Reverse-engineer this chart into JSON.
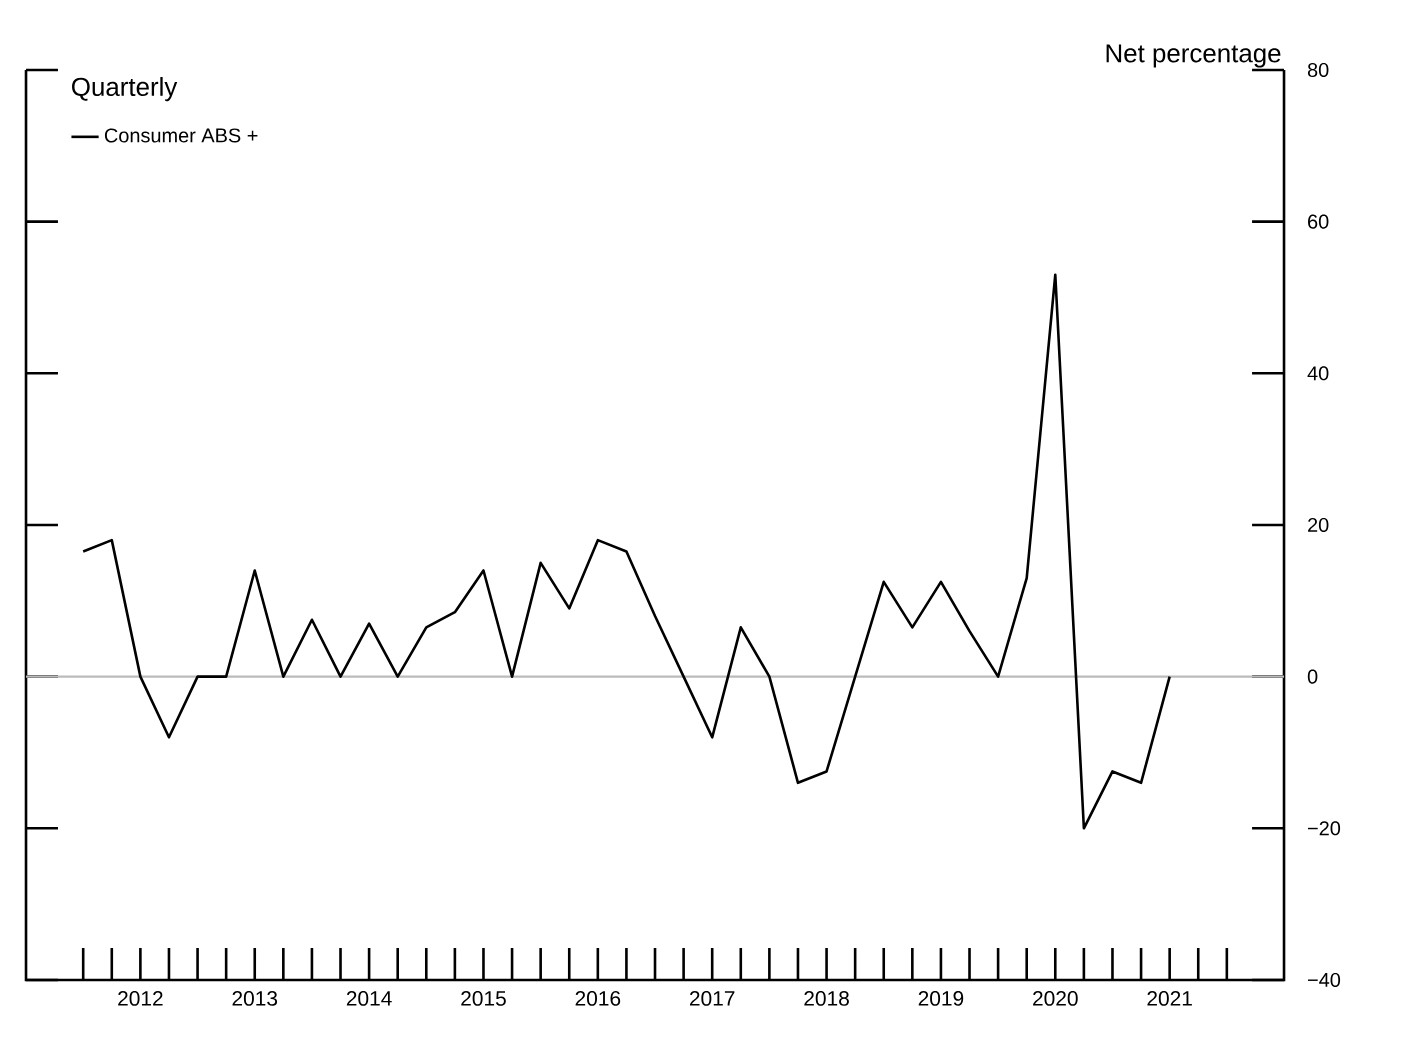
{
  "chart_data": {
    "type": "line",
    "ylabel": "Net percentage",
    "legend_title": "Quarterly",
    "x": [
      2012,
      2012.25,
      2012.5,
      2012.75,
      2013,
      2013.25,
      2013.5,
      2013.75,
      2014,
      2014.25,
      2014.5,
      2014.75,
      2015,
      2015.25,
      2015.5,
      2015.75,
      2016,
      2016.25,
      2016.5,
      2016.75,
      2017,
      2017.25,
      2017.5,
      2017.75,
      2018,
      2018.25,
      2018.5,
      2018.75,
      2019,
      2019.25,
      2019.5,
      2019.75,
      2020,
      2020.25,
      2020.5,
      2020.75,
      2021,
      2021.25,
      2021.5
    ],
    "series": [
      {
        "name": "Consumer ABS +",
        "color": "#000000",
        "values": [
          16.5,
          18,
          0,
          -8,
          0,
          0,
          14,
          0,
          7.5,
          0,
          7,
          0,
          6.5,
          8.5,
          14,
          0,
          15,
          9,
          18,
          16.5,
          8,
          0,
          -8,
          6.5,
          0,
          -14,
          -12.5,
          0,
          12.5,
          6.5,
          12.5,
          6,
          0,
          13,
          53,
          -20,
          -12.5,
          -14,
          0
        ]
      }
    ],
    "xlim": [
      2011.5,
      2022.5
    ],
    "xticks": [
      {
        "value": 2012,
        "label": null
      },
      {
        "value": 2012.25,
        "label": null
      },
      {
        "value": 2012.5,
        "label": "2012"
      },
      {
        "value": 2012.75,
        "label": null
      },
      {
        "value": 2013,
        "label": null
      },
      {
        "value": 2013.25,
        "label": null
      },
      {
        "value": 2013.5,
        "label": "2013"
      },
      {
        "value": 2013.75,
        "label": null
      },
      {
        "value": 2014,
        "label": null
      },
      {
        "value": 2014.25,
        "label": null
      },
      {
        "value": 2014.5,
        "label": "2014"
      },
      {
        "value": 2014.75,
        "label": null
      },
      {
        "value": 2015,
        "label": null
      },
      {
        "value": 2015.25,
        "label": null
      },
      {
        "value": 2015.5,
        "label": "2015"
      },
      {
        "value": 2015.75,
        "label": null
      },
      {
        "value": 2016,
        "label": null
      },
      {
        "value": 2016.25,
        "label": null
      },
      {
        "value": 2016.5,
        "label": "2016"
      },
      {
        "value": 2016.75,
        "label": null
      },
      {
        "value": 2017,
        "label": null
      },
      {
        "value": 2017.25,
        "label": null
      },
      {
        "value": 2017.5,
        "label": "2017"
      },
      {
        "value": 2017.75,
        "label": null
      },
      {
        "value": 2018,
        "label": null
      },
      {
        "value": 2018.25,
        "label": null
      },
      {
        "value": 2018.5,
        "label": "2018"
      },
      {
        "value": 2018.75,
        "label": null
      },
      {
        "value": 2019,
        "label": null
      },
      {
        "value": 2019.25,
        "label": null
      },
      {
        "value": 2019.5,
        "label": "2019"
      },
      {
        "value": 2019.75,
        "label": null
      },
      {
        "value": 2020,
        "label": null
      },
      {
        "value": 2020.25,
        "label": null
      },
      {
        "value": 2020.5,
        "label": "2020"
      },
      {
        "value": 2020.75,
        "label": null
      },
      {
        "value": 2021,
        "label": null
      },
      {
        "value": 2021.25,
        "label": null
      },
      {
        "value": 2021.5,
        "label": "2021"
      },
      {
        "value": 2021.75,
        "label": null
      },
      {
        "value": 2022,
        "label": null
      }
    ],
    "ylim": [
      -40,
      80
    ],
    "yticks": [
      {
        "value": -40,
        "label": "−40"
      },
      {
        "value": -20,
        "label": "−20"
      },
      0,
      20,
      40,
      60,
      80
    ],
    "ref_lines": [
      {
        "axis": "y",
        "value": 0,
        "color": "#bbbbbb"
      }
    ],
    "legend": "top left",
    "marker": "none",
    "line_style": "solid",
    "grid": false
  }
}
